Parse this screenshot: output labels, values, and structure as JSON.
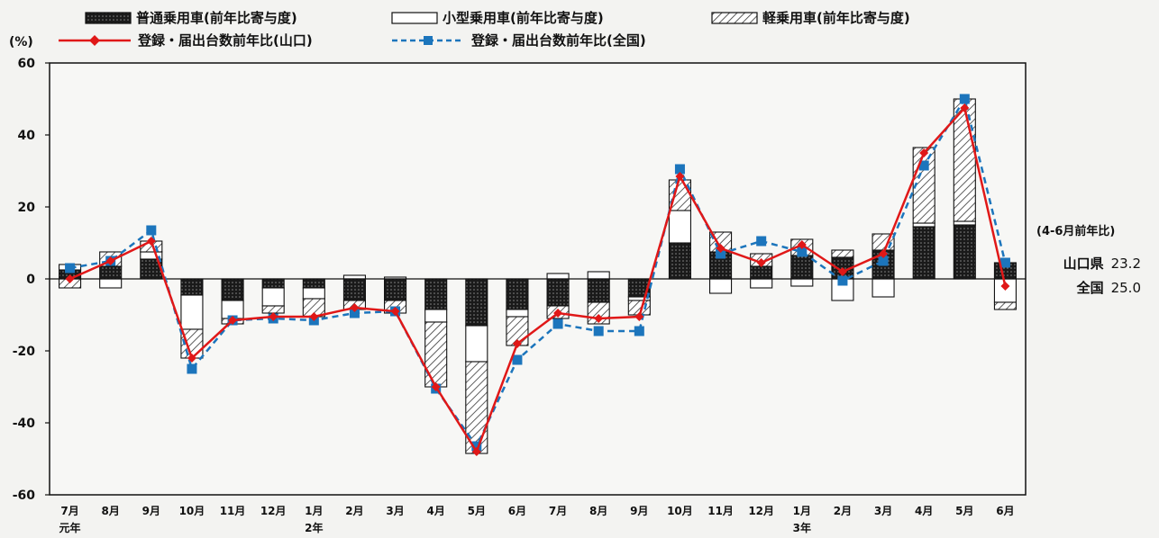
{
  "chart_data": {
    "type": "bar",
    "y_unit_label": "(%)",
    "ylim": [
      -60,
      60
    ],
    "yticks": [
      60,
      40,
      20,
      0,
      -20,
      -40,
      -60
    ],
    "grid": false,
    "legend_placement": "top",
    "categories": [
      "7月",
      "8月",
      "9月",
      "10月",
      "11月",
      "12月",
      "1月",
      "2月",
      "3月",
      "4月",
      "5月",
      "6月",
      "7月",
      "8月",
      "9月",
      "10月",
      "11月",
      "12月",
      "1月",
      "2月",
      "3月",
      "4月",
      "5月",
      "6月"
    ],
    "year_labels": [
      {
        "index": 0,
        "label": "元年"
      },
      {
        "index": 6,
        "label": "2年"
      },
      {
        "index": 18,
        "label": "3年"
      }
    ],
    "series": [
      {
        "name": "普通乗用車(前年比寄与度)",
        "kind": "bar",
        "pattern": "dotted",
        "values": [
          2.5,
          3.5,
          5.5,
          -4.5,
          -6.0,
          -2.5,
          -2.5,
          -6.0,
          -6.0,
          -8.5,
          -13.0,
          -8.5,
          -7.5,
          -6.5,
          -5.0,
          10.0,
          7.5,
          3.5,
          6.5,
          6.0,
          8.0,
          14.5,
          15.0,
          4.5
        ]
      },
      {
        "name": "小型乗用車(前年比寄与度)",
        "kind": "bar",
        "pattern": "white",
        "values": [
          1.5,
          -2.5,
          2.0,
          -9.5,
          -5.0,
          -5.0,
          -3.0,
          1.0,
          0.5,
          -3.5,
          -10.0,
          -2.0,
          1.5,
          2.0,
          -1.0,
          9.0,
          -4.0,
          -2.5,
          -2.0,
          -6.0,
          -5.0,
          1.0,
          1.0,
          -6.5
        ]
      },
      {
        "name": "軽乗用車(前年比寄与度)",
        "kind": "bar",
        "pattern": "hatched",
        "values": [
          -2.5,
          4.0,
          3.0,
          -8.0,
          -1.5,
          -2.0,
          -5.0,
          -2.5,
          -3.5,
          -18.0,
          -25.5,
          -8.0,
          -3.5,
          -6.0,
          -4.0,
          8.5,
          5.5,
          3.5,
          4.5,
          2.0,
          4.5,
          21.0,
          34.0,
          -2.0
        ]
      },
      {
        "name": "登録・届出台数前年比(山口)",
        "kind": "line",
        "style": "solid",
        "color": "#e01818",
        "values": [
          0.0,
          5.0,
          10.5,
          -22.0,
          -11.5,
          -10.5,
          -10.5,
          -8.0,
          -9.0,
          -30.0,
          -48.0,
          -18.0,
          -9.5,
          -11.0,
          -10.5,
          28.5,
          8.5,
          4.5,
          9.5,
          2.0,
          7.0,
          35.0,
          47.5,
          -2.0
        ]
      },
      {
        "name": "登録・届出台数前年比(全国)",
        "kind": "line",
        "style": "dashed",
        "color": "#1c75bc",
        "values": [
          3.0,
          5.0,
          13.5,
          -25.0,
          -11.5,
          -11.0,
          -11.5,
          -9.5,
          -9.0,
          -30.5,
          -46.5,
          -22.5,
          -12.5,
          -14.5,
          -14.5,
          30.5,
          7.0,
          10.5,
          7.5,
          -0.5,
          5.0,
          31.5,
          50.0,
          4.5
        ]
      }
    ]
  },
  "side_note": {
    "title": "(4-6月前年比)",
    "rows": [
      {
        "label": "山口県",
        "value": "23.2"
      },
      {
        "label": "全国",
        "value": "25.0"
      }
    ]
  }
}
